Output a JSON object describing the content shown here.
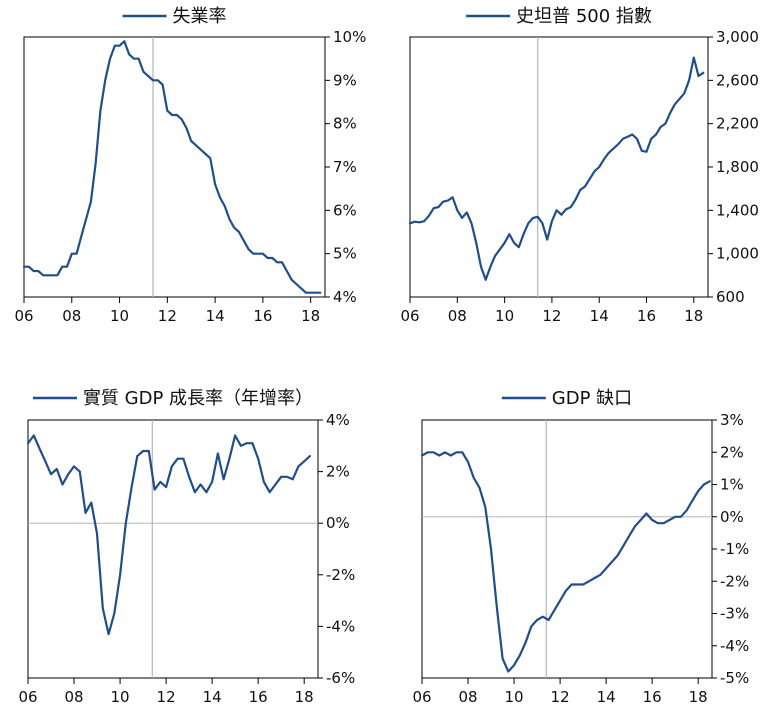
{
  "chart_data": [
    {
      "type": "line",
      "series": [
        {
          "name": "失業率"
        }
      ],
      "x_ticks": [
        "06",
        "08",
        "10",
        "12",
        "14",
        "16",
        "18"
      ],
      "y_ticks": [
        "10%",
        "9%",
        "8%",
        "7%",
        "6%",
        "5%",
        "4%"
      ],
      "ylim": [
        4,
        10
      ],
      "xlim": [
        2006,
        2018.6
      ],
      "y_axis_side": "right",
      "reference_line_x": 2011.4,
      "grid": false,
      "legend": "top-center",
      "points": [
        [
          2006.0,
          4.7
        ],
        [
          2006.2,
          4.7
        ],
        [
          2006.4,
          4.6
        ],
        [
          2006.6,
          4.6
        ],
        [
          2006.8,
          4.5
        ],
        [
          2007.0,
          4.5
        ],
        [
          2007.2,
          4.5
        ],
        [
          2007.4,
          4.5
        ],
        [
          2007.6,
          4.7
        ],
        [
          2007.8,
          4.7
        ],
        [
          2008.0,
          5.0
        ],
        [
          2008.2,
          5.0
        ],
        [
          2008.4,
          5.4
        ],
        [
          2008.6,
          5.8
        ],
        [
          2008.8,
          6.2
        ],
        [
          2009.0,
          7.1
        ],
        [
          2009.2,
          8.3
        ],
        [
          2009.4,
          9.0
        ],
        [
          2009.6,
          9.5
        ],
        [
          2009.8,
          9.8
        ],
        [
          2010.0,
          9.8
        ],
        [
          2010.2,
          9.9
        ],
        [
          2010.4,
          9.6
        ],
        [
          2010.6,
          9.5
        ],
        [
          2010.8,
          9.5
        ],
        [
          2011.0,
          9.2
        ],
        [
          2011.2,
          9.1
        ],
        [
          2011.4,
          9.0
        ],
        [
          2011.6,
          9.0
        ],
        [
          2011.8,
          8.9
        ],
        [
          2012.0,
          8.3
        ],
        [
          2012.2,
          8.2
        ],
        [
          2012.4,
          8.2
        ],
        [
          2012.6,
          8.1
        ],
        [
          2012.8,
          7.9
        ],
        [
          2013.0,
          7.6
        ],
        [
          2013.2,
          7.5
        ],
        [
          2013.4,
          7.4
        ],
        [
          2013.6,
          7.3
        ],
        [
          2013.8,
          7.2
        ],
        [
          2014.0,
          6.6
        ],
        [
          2014.2,
          6.3
        ],
        [
          2014.4,
          6.1
        ],
        [
          2014.6,
          5.8
        ],
        [
          2014.8,
          5.6
        ],
        [
          2015.0,
          5.5
        ],
        [
          2015.2,
          5.3
        ],
        [
          2015.4,
          5.1
        ],
        [
          2015.6,
          5.0
        ],
        [
          2015.8,
          5.0
        ],
        [
          2016.0,
          5.0
        ],
        [
          2016.2,
          4.9
        ],
        [
          2016.4,
          4.9
        ],
        [
          2016.6,
          4.8
        ],
        [
          2016.8,
          4.8
        ],
        [
          2017.0,
          4.6
        ],
        [
          2017.2,
          4.4
        ],
        [
          2017.4,
          4.3
        ],
        [
          2017.6,
          4.2
        ],
        [
          2017.8,
          4.1
        ],
        [
          2018.0,
          4.1
        ],
        [
          2018.2,
          4.1
        ],
        [
          2018.4,
          4.1
        ]
      ]
    },
    {
      "type": "line",
      "series": [
        {
          "name": "史坦普 500 指數"
        }
      ],
      "x_ticks": [
        "06",
        "08",
        "10",
        "12",
        "14",
        "16",
        "18"
      ],
      "y_ticks": [
        "3,000",
        "2,600",
        "2,200",
        "1,800",
        "1,400",
        "1,000",
        "600"
      ],
      "ylim": [
        600,
        3000
      ],
      "xlim": [
        2006,
        2018.6
      ],
      "y_axis_side": "right",
      "reference_line_x": 2011.4,
      "grid": false,
      "legend": "top-center",
      "points": [
        [
          2006.0,
          1280
        ],
        [
          2006.2,
          1295
        ],
        [
          2006.4,
          1290
        ],
        [
          2006.6,
          1300
        ],
        [
          2006.8,
          1350
        ],
        [
          2007.0,
          1420
        ],
        [
          2007.2,
          1430
        ],
        [
          2007.4,
          1480
        ],
        [
          2007.6,
          1490
        ],
        [
          2007.8,
          1520
        ],
        [
          2008.0,
          1400
        ],
        [
          2008.2,
          1330
        ],
        [
          2008.4,
          1380
        ],
        [
          2008.6,
          1280
        ],
        [
          2008.8,
          1100
        ],
        [
          2009.0,
          880
        ],
        [
          2009.2,
          760
        ],
        [
          2009.4,
          880
        ],
        [
          2009.6,
          980
        ],
        [
          2009.8,
          1040
        ],
        [
          2010.0,
          1100
        ],
        [
          2010.2,
          1180
        ],
        [
          2010.4,
          1100
        ],
        [
          2010.6,
          1060
        ],
        [
          2010.8,
          1180
        ],
        [
          2011.0,
          1280
        ],
        [
          2011.2,
          1330
        ],
        [
          2011.4,
          1340
        ],
        [
          2011.6,
          1280
        ],
        [
          2011.8,
          1130
        ],
        [
          2012.0,
          1300
        ],
        [
          2012.2,
          1400
        ],
        [
          2012.4,
          1360
        ],
        [
          2012.6,
          1410
        ],
        [
          2012.8,
          1430
        ],
        [
          2013.0,
          1500
        ],
        [
          2013.2,
          1590
        ],
        [
          2013.4,
          1620
        ],
        [
          2013.6,
          1690
        ],
        [
          2013.8,
          1760
        ],
        [
          2014.0,
          1800
        ],
        [
          2014.2,
          1870
        ],
        [
          2014.4,
          1930
        ],
        [
          2014.6,
          1970
        ],
        [
          2014.8,
          2010
        ],
        [
          2015.0,
          2060
        ],
        [
          2015.2,
          2080
        ],
        [
          2015.4,
          2100
        ],
        [
          2015.6,
          2060
        ],
        [
          2015.8,
          1950
        ],
        [
          2016.0,
          1940
        ],
        [
          2016.2,
          2060
        ],
        [
          2016.4,
          2100
        ],
        [
          2016.6,
          2170
        ],
        [
          2016.8,
          2200
        ],
        [
          2017.0,
          2300
        ],
        [
          2017.2,
          2380
        ],
        [
          2017.4,
          2430
        ],
        [
          2017.6,
          2480
        ],
        [
          2017.8,
          2600
        ],
        [
          2018.0,
          2810
        ],
        [
          2018.2,
          2640
        ],
        [
          2018.4,
          2670
        ]
      ]
    },
    {
      "type": "line",
      "series": [
        {
          "name": "實質 GDP 成長率（年增率）"
        }
      ],
      "x_ticks": [
        "06",
        "08",
        "10",
        "12",
        "14",
        "16",
        "18"
      ],
      "y_ticks": [
        "4%",
        "2%",
        "0%",
        "-2%",
        "-4%",
        "-6%"
      ],
      "ylim": [
        -6,
        4
      ],
      "xlim": [
        2006,
        2018.6
      ],
      "y_axis_side": "right",
      "reference_line_x": 2011.4,
      "zero_line": true,
      "grid": false,
      "legend": "top-center",
      "points": [
        [
          2006.0,
          3.1
        ],
        [
          2006.25,
          3.4
        ],
        [
          2006.5,
          2.9
        ],
        [
          2006.75,
          2.4
        ],
        [
          2007.0,
          1.9
        ],
        [
          2007.25,
          2.1
        ],
        [
          2007.5,
          1.5
        ],
        [
          2007.75,
          1.9
        ],
        [
          2008.0,
          2.2
        ],
        [
          2008.25,
          2.0
        ],
        [
          2008.5,
          0.4
        ],
        [
          2008.75,
          0.8
        ],
        [
          2009.0,
          -0.4
        ],
        [
          2009.25,
          -3.3
        ],
        [
          2009.5,
          -4.3
        ],
        [
          2009.75,
          -3.5
        ],
        [
          2010.0,
          -2.0
        ],
        [
          2010.25,
          0.0
        ],
        [
          2010.5,
          1.4
        ],
        [
          2010.75,
          2.6
        ],
        [
          2011.0,
          2.8
        ],
        [
          2011.25,
          2.8
        ],
        [
          2011.5,
          1.3
        ],
        [
          2011.75,
          1.6
        ],
        [
          2012.0,
          1.4
        ],
        [
          2012.25,
          2.2
        ],
        [
          2012.5,
          2.5
        ],
        [
          2012.75,
          2.5
        ],
        [
          2013.0,
          1.8
        ],
        [
          2013.25,
          1.2
        ],
        [
          2013.5,
          1.5
        ],
        [
          2013.75,
          1.2
        ],
        [
          2014.0,
          1.6
        ],
        [
          2014.25,
          2.7
        ],
        [
          2014.5,
          1.7
        ],
        [
          2014.75,
          2.5
        ],
        [
          2015.0,
          3.4
        ],
        [
          2015.25,
          3.0
        ],
        [
          2015.5,
          3.1
        ],
        [
          2015.75,
          3.1
        ],
        [
          2016.0,
          2.5
        ],
        [
          2016.25,
          1.6
        ],
        [
          2016.5,
          1.2
        ],
        [
          2016.75,
          1.5
        ],
        [
          2017.0,
          1.8
        ],
        [
          2017.25,
          1.8
        ],
        [
          2017.5,
          1.7
        ],
        [
          2017.75,
          2.2
        ],
        [
          2018.0,
          2.4
        ],
        [
          2018.25,
          2.6
        ]
      ]
    },
    {
      "type": "line",
      "series": [
        {
          "name": "GDP 缺口"
        }
      ],
      "x_ticks": [
        "06",
        "08",
        "10",
        "12",
        "14",
        "16",
        "18"
      ],
      "y_ticks": [
        "3%",
        "2%",
        "1%",
        "0%",
        "-1%",
        "-2%",
        "-3%",
        "-4%",
        "-5%"
      ],
      "ylim": [
        -5,
        3
      ],
      "xlim": [
        2006,
        2018.6
      ],
      "y_axis_side": "right",
      "reference_line_x": 2011.4,
      "zero_line": true,
      "grid": false,
      "legend": "top-center",
      "points": [
        [
          2006.0,
          1.9
        ],
        [
          2006.25,
          2.0
        ],
        [
          2006.5,
          2.0
        ],
        [
          2006.75,
          1.9
        ],
        [
          2007.0,
          2.0
        ],
        [
          2007.25,
          1.9
        ],
        [
          2007.5,
          2.0
        ],
        [
          2007.75,
          2.0
        ],
        [
          2008.0,
          1.7
        ],
        [
          2008.25,
          1.2
        ],
        [
          2008.5,
          0.9
        ],
        [
          2008.75,
          0.3
        ],
        [
          2009.0,
          -1.0
        ],
        [
          2009.25,
          -2.8
        ],
        [
          2009.5,
          -4.4
        ],
        [
          2009.75,
          -4.8
        ],
        [
          2010.0,
          -4.6
        ],
        [
          2010.25,
          -4.3
        ],
        [
          2010.5,
          -3.9
        ],
        [
          2010.75,
          -3.4
        ],
        [
          2011.0,
          -3.2
        ],
        [
          2011.25,
          -3.1
        ],
        [
          2011.5,
          -3.2
        ],
        [
          2011.75,
          -2.9
        ],
        [
          2012.0,
          -2.6
        ],
        [
          2012.25,
          -2.3
        ],
        [
          2012.5,
          -2.1
        ],
        [
          2012.75,
          -2.1
        ],
        [
          2013.0,
          -2.1
        ],
        [
          2013.25,
          -2.0
        ],
        [
          2013.5,
          -1.9
        ],
        [
          2013.75,
          -1.8
        ],
        [
          2014.0,
          -1.6
        ],
        [
          2014.25,
          -1.4
        ],
        [
          2014.5,
          -1.2
        ],
        [
          2014.75,
          -0.9
        ],
        [
          2015.0,
          -0.6
        ],
        [
          2015.25,
          -0.3
        ],
        [
          2015.5,
          -0.1
        ],
        [
          2015.75,
          0.1
        ],
        [
          2016.0,
          -0.1
        ],
        [
          2016.25,
          -0.2
        ],
        [
          2016.5,
          -0.2
        ],
        [
          2016.75,
          -0.1
        ],
        [
          2017.0,
          0.0
        ],
        [
          2017.25,
          0.0
        ],
        [
          2017.5,
          0.2
        ],
        [
          2017.75,
          0.5
        ],
        [
          2018.0,
          0.8
        ],
        [
          2018.25,
          1.0
        ],
        [
          2018.5,
          1.1
        ]
      ]
    }
  ]
}
